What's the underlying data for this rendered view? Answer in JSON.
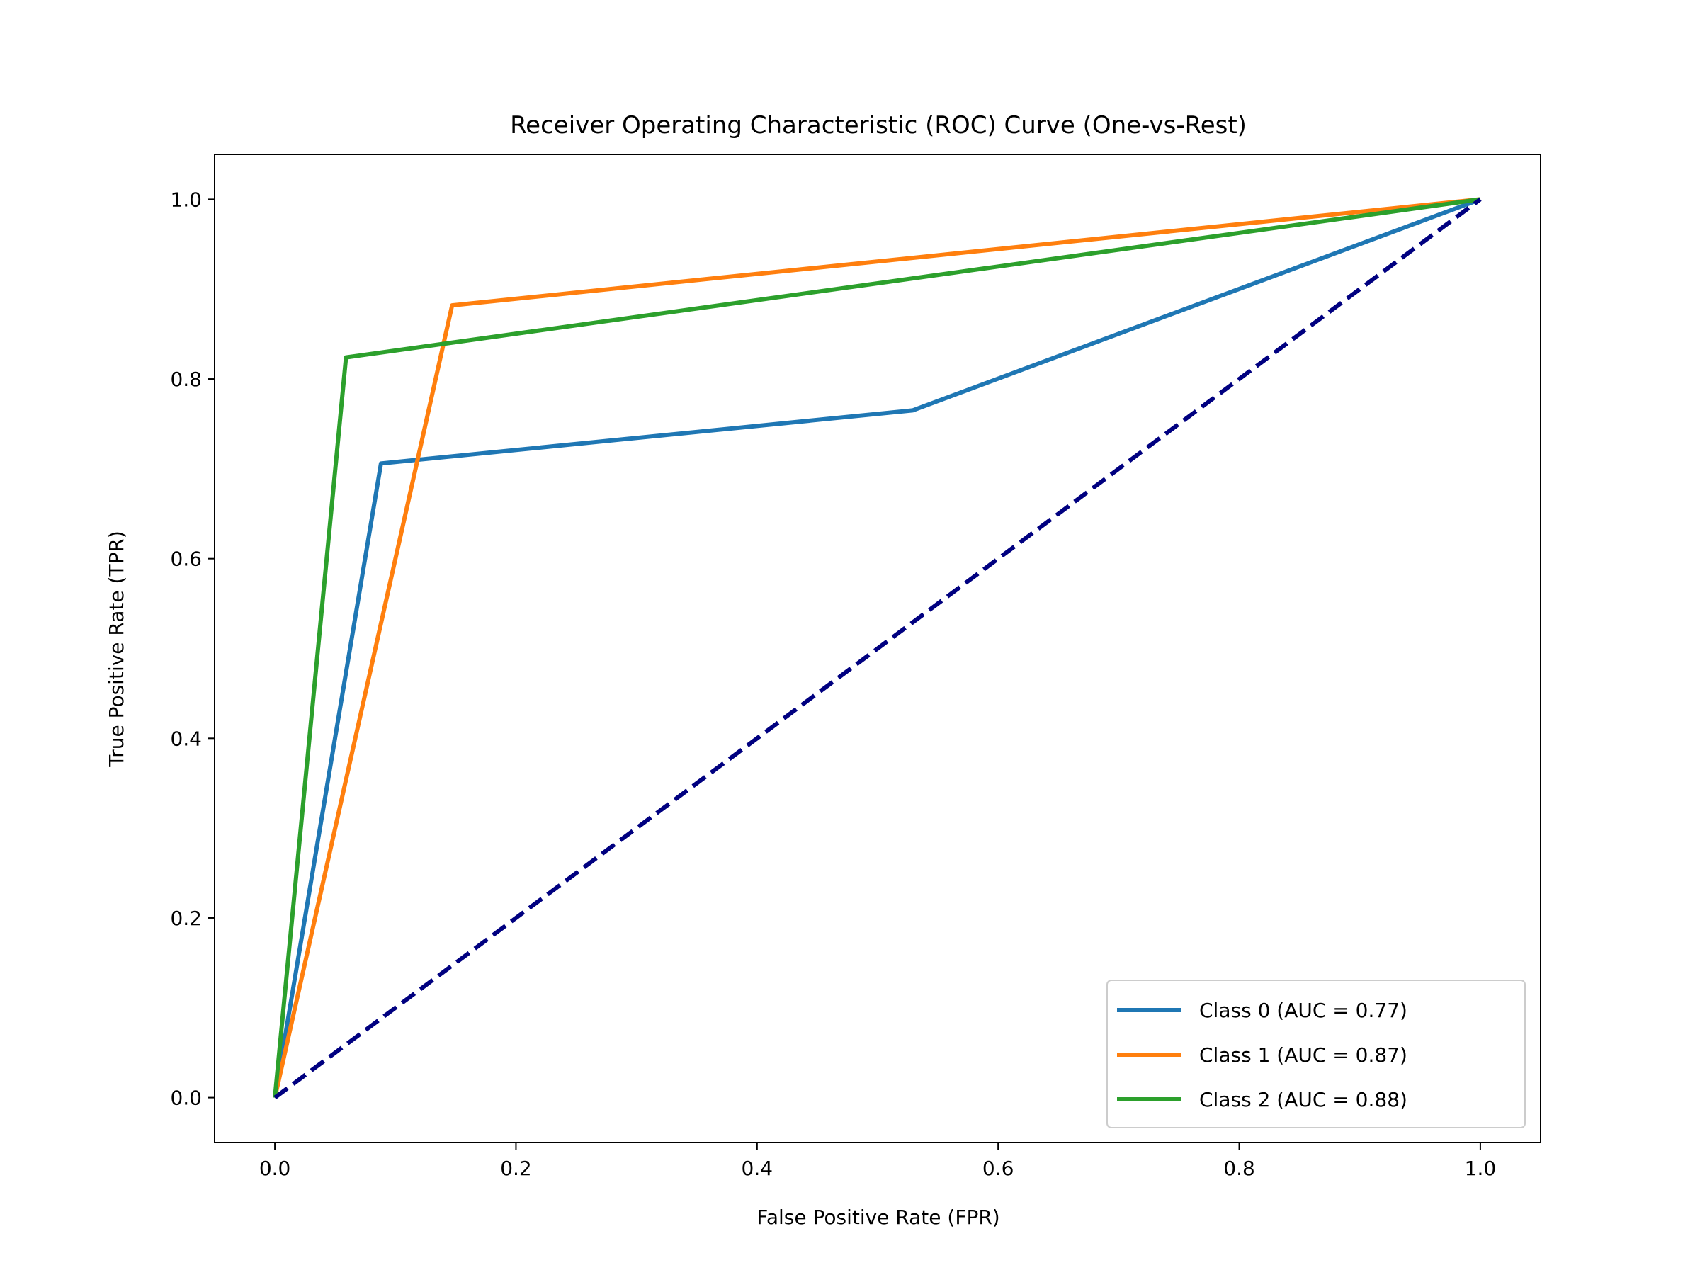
{
  "chart_data": {
    "type": "line",
    "title": "Receiver Operating Characteristic (ROC) Curve (One-vs-Rest)",
    "xlabel": "False Positive Rate (FPR)",
    "ylabel": "True Positive Rate (TPR)",
    "xlim": [
      -0.05,
      1.05
    ],
    "ylim": [
      -0.05,
      1.05
    ],
    "xticks": [
      0.0,
      0.2,
      0.4,
      0.6,
      0.8,
      1.0
    ],
    "xtick_labels": [
      "0.0",
      "0.2",
      "0.4",
      "0.6",
      "0.8",
      "1.0"
    ],
    "yticks": [
      0.0,
      0.2,
      0.4,
      0.6,
      0.8,
      1.0
    ],
    "ytick_labels": [
      "0.0",
      "0.2",
      "0.4",
      "0.6",
      "0.8",
      "1.0"
    ],
    "grid": false,
    "legend_position": "lower-right",
    "series": [
      {
        "name": "Class 0 (AUC = 0.77)",
        "color": "#1f77b4",
        "x": [
          0.0,
          0.088,
          0.529,
          1.0
        ],
        "y": [
          0.0,
          0.706,
          0.765,
          1.0
        ]
      },
      {
        "name": "Class 1 (AUC = 0.87)",
        "color": "#ff7f0e",
        "x": [
          0.0,
          0.147,
          1.0
        ],
        "y": [
          0.0,
          0.882,
          1.0
        ]
      },
      {
        "name": "Class 2 (AUC = 0.88)",
        "color": "#2ca02c",
        "x": [
          0.0,
          0.059,
          1.0
        ],
        "y": [
          0.0,
          0.824,
          1.0
        ]
      }
    ],
    "reference_line": {
      "color": "#000080",
      "style": "dashed",
      "x": [
        0.0,
        1.0
      ],
      "y": [
        0.0,
        1.0
      ]
    }
  }
}
